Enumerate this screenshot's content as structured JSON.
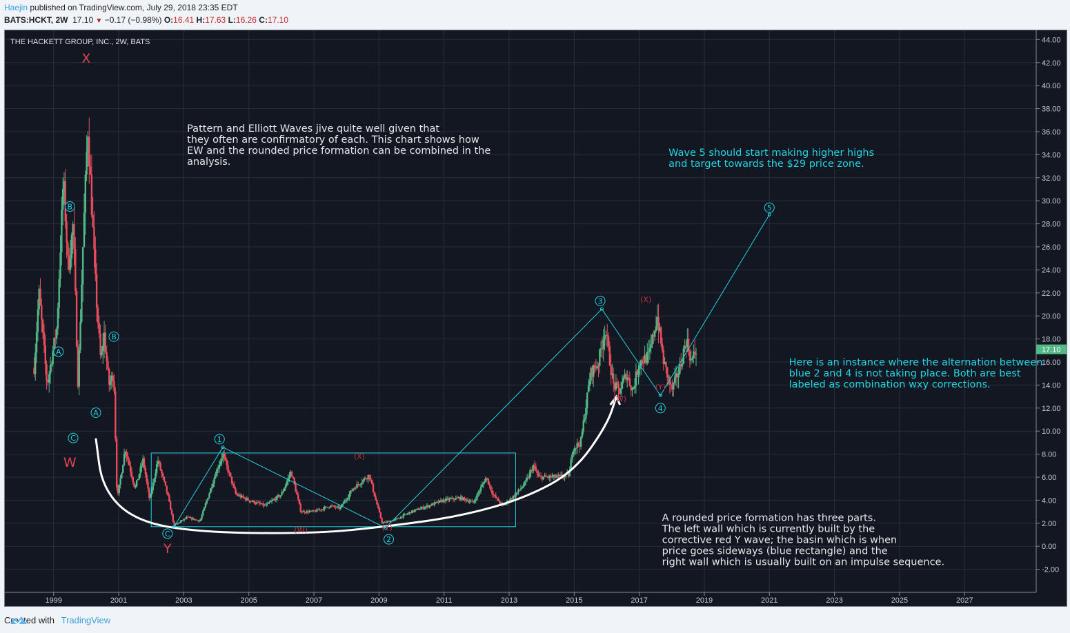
{
  "header": {
    "author": "Haejin",
    "published_text": " published on TradingView.com, July 29, 2018 23:35 EDT",
    "symbol": "BATS:HCKT, 2W",
    "last": "17.10",
    "change_icon": "down-triangle-icon",
    "change": "−0.17 (−0.98%)",
    "o_label": "O:",
    "o": "16.41",
    "h_label": "H:",
    "h": "17.63",
    "l_label": "L:",
    "l": "16.26",
    "c_label": "C:",
    "c": "17.10"
  },
  "footer": {
    "created_with": "Created with",
    "brand": "TradingView",
    "logo_icon": "tradingview-logo-icon"
  },
  "colors": {
    "background": "#131722",
    "grid": "#2a2e3c",
    "up": "#53b987",
    "down": "#eb4d5c",
    "wave_blue": "#22d3e0",
    "wave_red": "#e0424f",
    "curve": "#ffffff",
    "text": "#e8e8e8",
    "price_tag": "#53b987"
  },
  "chart_data": {
    "type": "candlestick",
    "title": "THE HACKETT GROUP, INC., 2W, BATS",
    "interval": "2W",
    "xlabel": "",
    "ylabel": "",
    "xlim": [
      1997.5,
      2029.2
    ],
    "ylim": [
      -4.0,
      44.8
    ],
    "x_ticks": [
      "1999",
      "2001",
      "2003",
      "2005",
      "2007",
      "2009",
      "2011",
      "2013",
      "2015",
      "2017",
      "2019",
      "2021",
      "2023",
      "2025",
      "2027"
    ],
    "y_ticks": [
      "44.00",
      "42.00",
      "40.00",
      "38.00",
      "36.00",
      "34.00",
      "32.00",
      "30.00",
      "28.00",
      "26.00",
      "24.00",
      "22.00",
      "20.00",
      "18.00",
      "16.00",
      "14.00",
      "12.00",
      "10.00",
      "8.00",
      "6.00",
      "4.00",
      "2.00",
      "0.00",
      "-2.00"
    ],
    "grid": true,
    "last_price": 17.1,
    "last_price_label": "17.10",
    "price_path": [
      [
        1998.4,
        15.5
      ],
      [
        1998.55,
        22.0
      ],
      [
        1998.8,
        14.0
      ],
      [
        1999.1,
        19.0
      ],
      [
        1999.3,
        32.0
      ],
      [
        1999.45,
        24.0
      ],
      [
        1999.6,
        28.0
      ],
      [
        1999.75,
        14.0
      ],
      [
        1999.9,
        26.0
      ],
      [
        2000.05,
        36.5
      ],
      [
        2000.3,
        22.0
      ],
      [
        2000.45,
        16.0
      ],
      [
        2000.55,
        18.5
      ],
      [
        2000.7,
        14.0
      ],
      [
        2000.85,
        15.0
      ],
      [
        2000.95,
        4.0
      ],
      [
        2001.2,
        8.5
      ],
      [
        2001.5,
        5.0
      ],
      [
        2001.75,
        7.5
      ],
      [
        2001.95,
        4.0
      ],
      [
        2002.2,
        7.5
      ],
      [
        2002.5,
        4.5
      ],
      [
        2002.7,
        1.8
      ],
      [
        2003.1,
        2.5
      ],
      [
        2003.5,
        2.2
      ],
      [
        2004.0,
        6.5
      ],
      [
        2004.2,
        8.0
      ],
      [
        2004.6,
        4.5
      ],
      [
        2005.0,
        4.0
      ],
      [
        2005.5,
        3.5
      ],
      [
        2006.0,
        4.5
      ],
      [
        2006.3,
        6.5
      ],
      [
        2006.6,
        3.0
      ],
      [
        2007.0,
        3.0
      ],
      [
        2007.5,
        3.5
      ],
      [
        2007.8,
        3.3
      ],
      [
        2008.2,
        5.0
      ],
      [
        2008.7,
        6.2
      ],
      [
        2008.9,
        4.0
      ],
      [
        2009.1,
        2.0
      ],
      [
        2009.5,
        2.3
      ],
      [
        2010.0,
        3.0
      ],
      [
        2010.5,
        3.5
      ],
      [
        2011.0,
        4.0
      ],
      [
        2011.5,
        4.2
      ],
      [
        2011.9,
        3.8
      ],
      [
        2012.3,
        6.0
      ],
      [
        2012.5,
        4.5
      ],
      [
        2012.8,
        3.5
      ],
      [
        2013.2,
        4.5
      ],
      [
        2013.5,
        5.5
      ],
      [
        2013.75,
        7.0
      ],
      [
        2013.9,
        6.0
      ],
      [
        2014.5,
        6.0
      ],
      [
        2014.85,
        6.2
      ],
      [
        2014.95,
        8.5
      ],
      [
        2015.2,
        9.0
      ],
      [
        2015.5,
        15.0
      ],
      [
        2015.75,
        16.0
      ],
      [
        2015.95,
        19.0
      ],
      [
        2016.2,
        14.0
      ],
      [
        2016.4,
        13.5
      ],
      [
        2016.6,
        15.0
      ],
      [
        2016.8,
        13.5
      ],
      [
        2017.0,
        16.0
      ],
      [
        2017.3,
        16.5
      ],
      [
        2017.55,
        20.0
      ],
      [
        2017.75,
        16.0
      ],
      [
        2018.0,
        13.5
      ],
      [
        2018.25,
        15.5
      ],
      [
        2018.45,
        18.0
      ],
      [
        2018.6,
        16.0
      ],
      [
        2018.75,
        17.1
      ]
    ],
    "annotations": {
      "notes": [
        {
          "id": "intro",
          "text": "Pattern and Elliott Waves jive quite well given that\nthey often are confirmatory of each. This chart shows how\nEW and the rounded price formation can be combined in the\nanalysis.",
          "color": "white",
          "x": 2003.1,
          "y": 36.0
        },
        {
          "id": "wave5",
          "text": "Wave 5 should start making higher highs\nand target towards the $29 price zone.",
          "color": "blue",
          "x": 2017.9,
          "y": 33.9
        },
        {
          "id": "alternation",
          "text": "Here is an instance where the alternation between\nblue 2 and 4 is not taking place. Both are best\nlabeled as combination wxy corrections.",
          "color": "blue",
          "x": 2021.6,
          "y": 15.7
        },
        {
          "id": "rounded",
          "text": "A rounded price formation has three parts.\nThe left wall which is currently built by the\ncorrective red Y wave; the basin which is when\nprice goes sideways (blue rectangle) and the\nright wall which is usually built on an impulse sequence.",
          "color": "white",
          "x": 2017.7,
          "y": 2.2
        }
      ],
      "wave_labels": [
        {
          "text": "X",
          "style": "red-big",
          "x": 2000.0,
          "y": 42.0
        },
        {
          "text": "W",
          "style": "red-big",
          "x": 1999.5,
          "y": 6.9
        },
        {
          "text": "Y",
          "style": "red-big",
          "x": 2002.5,
          "y": -0.6
        },
        {
          "text": "A",
          "style": "blue-circle",
          "x": 1999.15,
          "y": 16.9
        },
        {
          "text": "B",
          "style": "blue-circle",
          "x": 1999.5,
          "y": 29.5
        },
        {
          "text": "C",
          "style": "blue-circle",
          "x": 1999.6,
          "y": 9.4
        },
        {
          "text": "B",
          "style": "blue-circle",
          "x": 2000.85,
          "y": 18.2
        },
        {
          "text": "A",
          "style": "blue-circle",
          "x": 2000.3,
          "y": 11.6
        },
        {
          "text": "C",
          "style": "blue-circle",
          "x": 2002.5,
          "y": 1.1
        },
        {
          "text": "1",
          "style": "blue-circle",
          "x": 2004.1,
          "y": 9.3
        },
        {
          "text": "2",
          "style": "blue-circle",
          "x": 2009.3,
          "y": 0.6
        },
        {
          "text": "3",
          "style": "blue-circle",
          "x": 2015.8,
          "y": 21.3
        },
        {
          "text": "4",
          "style": "blue-circle",
          "x": 2017.65,
          "y": 12.0
        },
        {
          "text": "5",
          "style": "blue-circle",
          "x": 2021.0,
          "y": 29.4
        },
        {
          "text": "(X)",
          "style": "red-small",
          "x": 2008.4,
          "y": 7.6
        },
        {
          "text": "(W)",
          "style": "red-small",
          "x": 2006.6,
          "y": 1.2
        },
        {
          "text": "(Y)",
          "style": "red-small",
          "x": 2009.25,
          "y": 1.4
        },
        {
          "text": "(X)",
          "style": "red-small",
          "x": 2017.2,
          "y": 21.2
        },
        {
          "text": "(W)",
          "style": "red-small",
          "x": 2016.4,
          "y": 12.6
        },
        {
          "text": "(Y)",
          "style": "red-small",
          "x": 2017.65,
          "y": 13.6
        }
      ],
      "wave_path": [
        [
          2002.7,
          1.7
        ],
        [
          2004.2,
          8.6
        ],
        [
          2009.2,
          1.6
        ],
        [
          2015.85,
          20.6
        ],
        [
          2017.65,
          13.1
        ],
        [
          2021.0,
          28.8
        ]
      ],
      "basin_rectangle": {
        "x0": 2002.0,
        "x1": 2013.2,
        "y0": 1.7,
        "y1": 8.1
      },
      "rounded_curve": [
        [
          2000.3,
          9.3
        ],
        [
          2000.5,
          5.0
        ],
        [
          2001.5,
          2.2
        ],
        [
          2003.5,
          1.2
        ],
        [
          2007.0,
          1.1
        ],
        [
          2009.2,
          1.7
        ],
        [
          2011.5,
          2.6
        ],
        [
          2013.5,
          4.2
        ],
        [
          2015.0,
          6.5
        ],
        [
          2016.0,
          10.5
        ],
        [
          2016.3,
          13.0
        ]
      ]
    }
  }
}
